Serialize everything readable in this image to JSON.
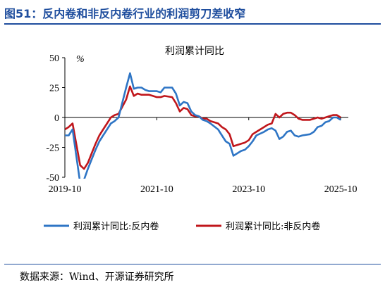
{
  "figure": {
    "title": "图51：反内卷和非反内卷行业的利润剪刀差收窄",
    "source": "数据来源：Wind、开源证券研究所"
  },
  "chart_data": {
    "type": "line",
    "title": "利润累计同比",
    "ylabel": "%",
    "ylim": [
      -50,
      50
    ],
    "yticks": [
      50,
      25,
      0,
      -25,
      -50
    ],
    "xlim": [
      "2019-10",
      "2025-12"
    ],
    "xticks": [
      "2019-10",
      "2021-10",
      "2023-10",
      "2025-10"
    ],
    "grid": false,
    "legend": "bottom",
    "series": [
      {
        "name": "利润累计同比:反内卷",
        "color": "#2e75c5",
        "points": [
          [
            "2019-10",
            -15
          ],
          [
            "2019-11",
            -15
          ],
          [
            "2019-12",
            -10
          ],
          [
            "2020-02",
            -55
          ],
          [
            "2020-03",
            -52
          ],
          [
            "2020-04",
            -43
          ],
          [
            "2020-05",
            -35
          ],
          [
            "2020-06",
            -27
          ],
          [
            "2020-07",
            -20
          ],
          [
            "2020-08",
            -15
          ],
          [
            "2020-09",
            -10
          ],
          [
            "2020-10",
            -5
          ],
          [
            "2020-11",
            -3
          ],
          [
            "2020-12",
            0
          ],
          [
            "2021-02",
            25
          ],
          [
            "2021-03",
            37
          ],
          [
            "2021-04",
            24
          ],
          [
            "2021-05",
            25
          ],
          [
            "2021-06",
            25
          ],
          [
            "2021-07",
            23
          ],
          [
            "2021-08",
            22
          ],
          [
            "2021-09",
            22
          ],
          [
            "2021-10",
            22
          ],
          [
            "2021-11",
            21
          ],
          [
            "2021-12",
            25
          ],
          [
            "2022-02",
            25
          ],
          [
            "2022-03",
            20
          ],
          [
            "2022-04",
            10
          ],
          [
            "2022-05",
            13
          ],
          [
            "2022-06",
            12
          ],
          [
            "2022-07",
            5
          ],
          [
            "2022-08",
            2
          ],
          [
            "2022-09",
            1
          ],
          [
            "2022-10",
            -2
          ],
          [
            "2022-11",
            -3
          ],
          [
            "2022-12",
            -5
          ],
          [
            "2023-02",
            -10
          ],
          [
            "2023-03",
            -15
          ],
          [
            "2023-04",
            -20
          ],
          [
            "2023-05",
            -22
          ],
          [
            "2023-06",
            -32
          ],
          [
            "2023-07",
            -30
          ],
          [
            "2023-08",
            -28
          ],
          [
            "2023-09",
            -27
          ],
          [
            "2023-10",
            -24
          ],
          [
            "2023-11",
            -20
          ],
          [
            "2023-12",
            -15
          ],
          [
            "2024-02",
            -12
          ],
          [
            "2024-03",
            -10
          ],
          [
            "2024-04",
            -9
          ],
          [
            "2024-05",
            -11
          ],
          [
            "2024-06",
            -18
          ],
          [
            "2024-07",
            -16
          ],
          [
            "2024-08",
            -12
          ],
          [
            "2024-09",
            -11
          ],
          [
            "2024-10",
            -15
          ],
          [
            "2024-11",
            -16
          ],
          [
            "2024-12",
            -15
          ],
          [
            "2025-02",
            -14
          ],
          [
            "2025-03",
            -12
          ],
          [
            "2025-04",
            -8
          ],
          [
            "2025-05",
            -7
          ],
          [
            "2025-06",
            -4
          ],
          [
            "2025-07",
            -3
          ],
          [
            "2025-08",
            0
          ],
          [
            "2025-09",
            0
          ],
          [
            "2025-10",
            -2
          ]
        ]
      },
      {
        "name": "利润累计同比:非反内卷",
        "color": "#c0161b",
        "points": [
          [
            "2019-10",
            -10
          ],
          [
            "2019-11",
            -8
          ],
          [
            "2019-12",
            -5
          ],
          [
            "2020-02",
            -40
          ],
          [
            "2020-03",
            -43
          ],
          [
            "2020-04",
            -38
          ],
          [
            "2020-05",
            -30
          ],
          [
            "2020-06",
            -22
          ],
          [
            "2020-07",
            -15
          ],
          [
            "2020-08",
            -10
          ],
          [
            "2020-09",
            -5
          ],
          [
            "2020-10",
            0
          ],
          [
            "2020-11",
            2
          ],
          [
            "2020-12",
            3
          ],
          [
            "2021-02",
            15
          ],
          [
            "2021-03",
            26
          ],
          [
            "2021-04",
            18
          ],
          [
            "2021-05",
            20
          ],
          [
            "2021-06",
            19
          ],
          [
            "2021-07",
            19
          ],
          [
            "2021-08",
            19
          ],
          [
            "2021-09",
            18
          ],
          [
            "2021-10",
            17
          ],
          [
            "2021-11",
            17
          ],
          [
            "2021-12",
            18
          ],
          [
            "2022-02",
            17
          ],
          [
            "2022-03",
            12
          ],
          [
            "2022-04",
            5
          ],
          [
            "2022-05",
            8
          ],
          [
            "2022-06",
            7
          ],
          [
            "2022-07",
            2
          ],
          [
            "2022-08",
            1
          ],
          [
            "2022-09",
            1
          ],
          [
            "2022-10",
            -1
          ],
          [
            "2022-11",
            -1
          ],
          [
            "2022-12",
            -3
          ],
          [
            "2023-02",
            -5
          ],
          [
            "2023-03",
            -8
          ],
          [
            "2023-04",
            -10
          ],
          [
            "2023-05",
            -14
          ],
          [
            "2023-06",
            -24
          ],
          [
            "2023-07",
            -23
          ],
          [
            "2023-08",
            -22
          ],
          [
            "2023-09",
            -21
          ],
          [
            "2023-10",
            -19
          ],
          [
            "2023-11",
            -14
          ],
          [
            "2023-12",
            -12
          ],
          [
            "2024-02",
            -8
          ],
          [
            "2024-03",
            -6
          ],
          [
            "2024-04",
            -5
          ],
          [
            "2024-05",
            3
          ],
          [
            "2024-06",
            0
          ],
          [
            "2024-07",
            3
          ],
          [
            "2024-08",
            4
          ],
          [
            "2024-09",
            4
          ],
          [
            "2024-10",
            2
          ],
          [
            "2024-11",
            -1
          ],
          [
            "2024-12",
            -2
          ],
          [
            "2025-02",
            -2
          ],
          [
            "2025-03",
            -1
          ],
          [
            "2025-04",
            0
          ],
          [
            "2025-05",
            -1
          ],
          [
            "2025-06",
            0
          ],
          [
            "2025-07",
            1
          ],
          [
            "2025-08",
            2
          ],
          [
            "2025-09",
            2
          ],
          [
            "2025-10",
            0
          ]
        ]
      }
    ]
  }
}
